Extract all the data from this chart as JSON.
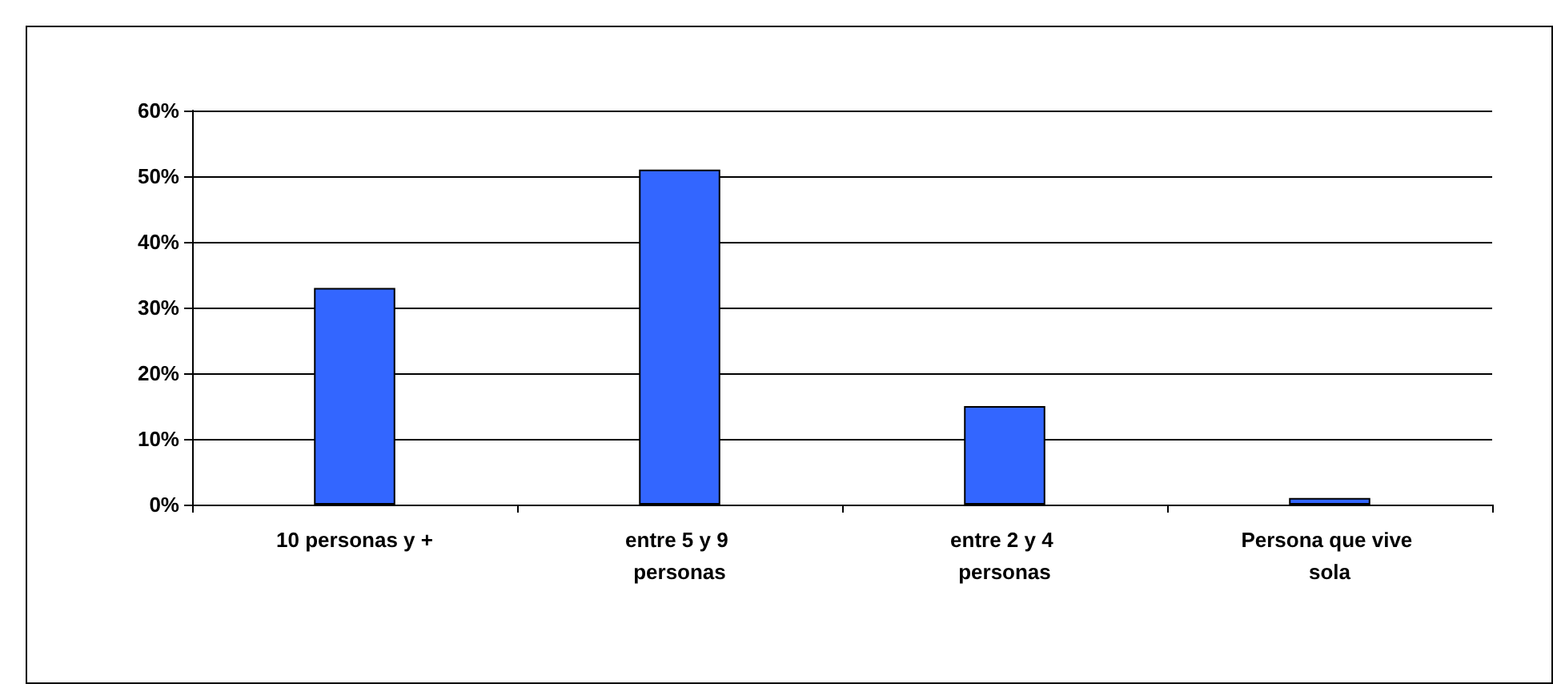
{
  "chart_data": {
    "type": "bar",
    "categories": [
      "10 personas y +",
      "entre 5 y 9 personas",
      "entre 2 y 4 personas",
      "Persona que vive sola"
    ],
    "values": [
      33,
      51,
      15,
      1
    ],
    "color": "#3366ff",
    "ylim": [
      0,
      60
    ],
    "yticks": [
      {
        "value": 0,
        "label": "0%"
      },
      {
        "value": 10,
        "label": "10%"
      },
      {
        "value": 20,
        "label": "20%"
      },
      {
        "value": 30,
        "label": "30%"
      },
      {
        "value": 40,
        "label": "40%"
      },
      {
        "value": 50,
        "label": "50%"
      },
      {
        "value": 60,
        "label": "60%"
      }
    ],
    "grid": "y"
  }
}
